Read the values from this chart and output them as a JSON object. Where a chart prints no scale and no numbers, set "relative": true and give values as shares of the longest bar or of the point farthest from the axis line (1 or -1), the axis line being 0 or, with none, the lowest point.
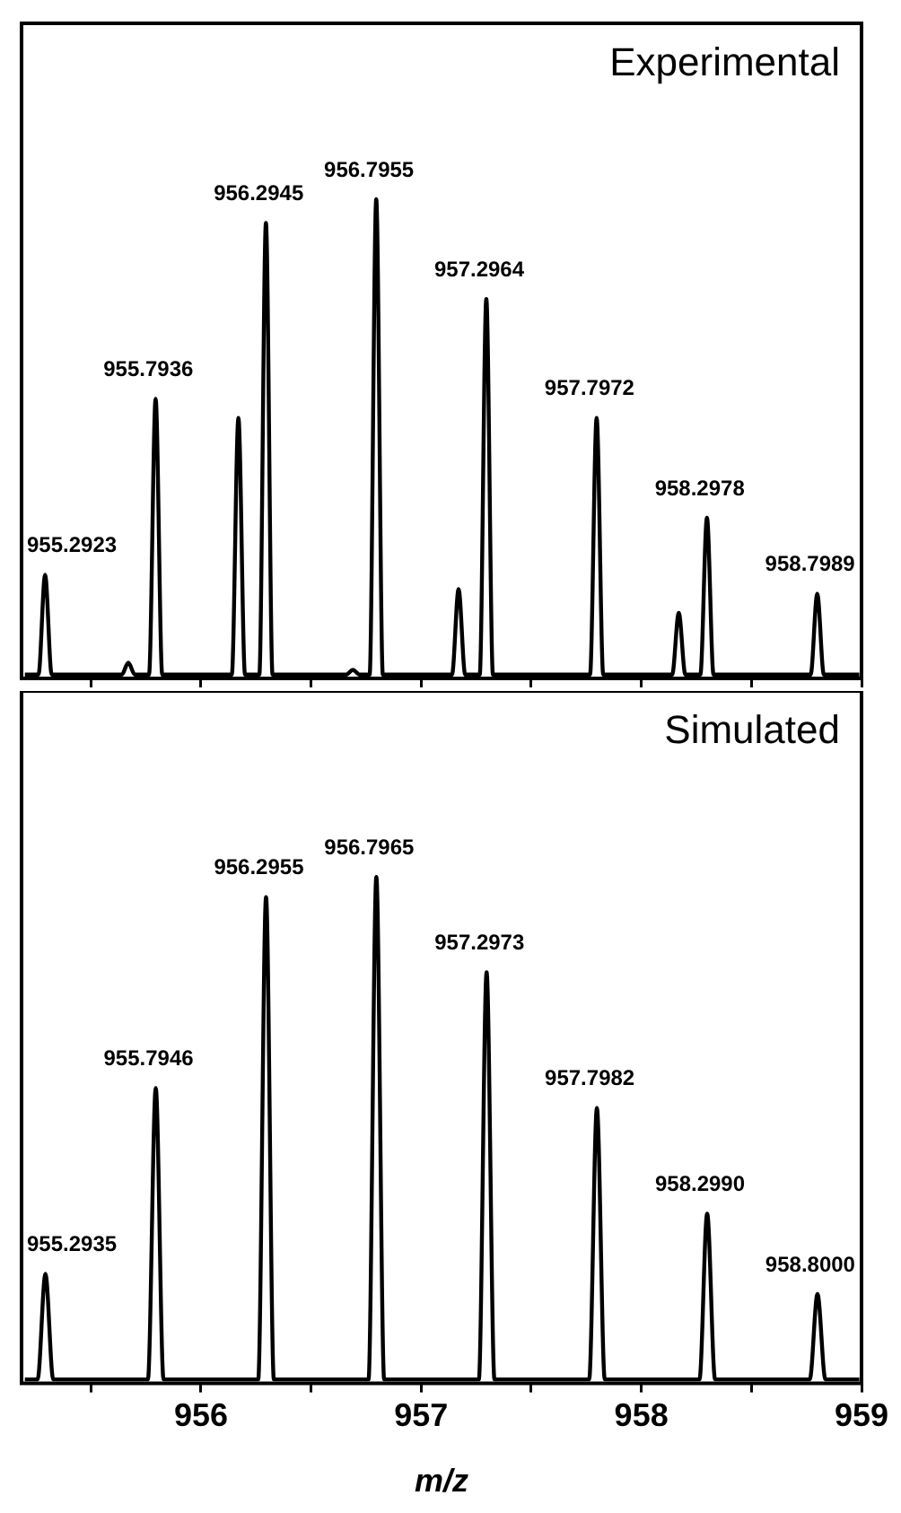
{
  "chart_data": [
    {
      "type": "line",
      "xlim": [
        955.185,
        959
      ],
      "xticks": [
        {
          "value": 955.5,
          "label": null
        },
        956,
        {
          "value": 956.5,
          "label": null
        },
        957,
        {
          "value": 957.5,
          "label": null
        },
        958,
        {
          "value": 958.5,
          "label": null
        },
        959
      ],
      "tick_labels": false,
      "relative": true,
      "marker": "none",
      "line_style": "solid",
      "legend": false,
      "grid": false,
      "annotations": [
        "Experimental",
        {
          "text": "955.2923",
          "x": 955.2923,
          "y": 0.21
        },
        {
          "text": "955.7936",
          "x": 955.7936,
          "y": 0.58
        },
        {
          "text": "956.2945",
          "x": 956.2945,
          "y": 0.95
        },
        {
          "text": "956.7955",
          "x": 956.7955,
          "y": 1
        },
        {
          "text": "957.2964",
          "x": 957.2964,
          "y": 0.79
        },
        {
          "text": "957.7972",
          "x": 957.7972,
          "y": 0.54
        },
        {
          "text": "958.2978",
          "x": 958.2978,
          "y": 0.33
        },
        {
          "text": "958.7989",
          "x": 958.7989,
          "y": 0.17
        }
      ],
      "series": [
        {
          "color": "#000000",
          "x": [
            955.2,
            955.262,
            955.292,
            955.322,
            955.64,
            955.67,
            955.7,
            955.764,
            955.794,
            955.824,
            956.14,
            956.17,
            956.2,
            956.265,
            956.295,
            956.325,
            956.66,
            956.69,
            956.72,
            956.766,
            956.796,
            956.826,
            957.14,
            957.17,
            957.2,
            957.266,
            957.296,
            957.326,
            957.767,
            957.797,
            957.827,
            958.14,
            958.17,
            958.2,
            958.268,
            958.298,
            958.328,
            958.769,
            958.799,
            958.829,
            958.99
          ],
          "values": [
            0,
            0,
            0.21,
            0,
            0,
            0.025,
            0,
            0,
            0.58,
            0,
            0,
            0.54,
            0,
            0,
            0.95,
            0,
            0,
            0.01,
            0,
            0,
            1,
            0,
            0,
            0.18,
            0,
            0,
            0.79,
            0,
            0,
            0.54,
            0,
            0,
            0.13,
            0,
            0,
            0.33,
            0,
            0,
            0.17,
            0,
            0
          ]
        }
      ]
    },
    {
      "type": "line",
      "xlim": [
        955.185,
        959
      ],
      "xticks": [
        {
          "value": 955.5,
          "label": null
        },
        956,
        {
          "value": 956.5,
          "label": null
        },
        957,
        {
          "value": 957.5,
          "label": null
        },
        958,
        {
          "value": 958.5,
          "label": null
        },
        959
      ],
      "xlabel": "m/z",
      "relative": true,
      "marker": "none",
      "line_style": "solid",
      "legend": false,
      "grid": false,
      "annotations": [
        "Simulated",
        {
          "text": "955.2935",
          "x": 955.2935,
          "y": 0.21
        },
        {
          "text": "955.7946",
          "x": 955.7946,
          "y": 0.58
        },
        {
          "text": "956.2955",
          "x": 956.2955,
          "y": 0.96
        },
        {
          "text": "956.7965",
          "x": 956.7965,
          "y": 1
        },
        {
          "text": "957.2973",
          "x": 957.2973,
          "y": 0.81
        },
        {
          "text": "957.7982",
          "x": 957.7982,
          "y": 0.54
        },
        {
          "text": "958.2990",
          "x": 958.299,
          "y": 0.33
        },
        {
          "text": "958.8000",
          "x": 958.8,
          "y": 0.17
        }
      ],
      "series": [
        {
          "color": "#000000",
          "x": [
            955.2,
            955.258,
            955.2935,
            955.329,
            955.759,
            955.7946,
            955.83,
            956.26,
            956.2955,
            956.331,
            956.761,
            956.7965,
            956.832,
            957.262,
            957.2973,
            957.333,
            957.763,
            957.7982,
            957.834,
            958.264,
            958.299,
            958.335,
            958.765,
            958.8,
            958.836,
            958.99
          ],
          "values": [
            0,
            0,
            0.21,
            0,
            0,
            0.58,
            0,
            0,
            0.96,
            0,
            0,
            1,
            0,
            0,
            0.81,
            0,
            0,
            0.54,
            0,
            0,
            0.33,
            0,
            0,
            0.17,
            0,
            0
          ]
        }
      ]
    }
  ]
}
